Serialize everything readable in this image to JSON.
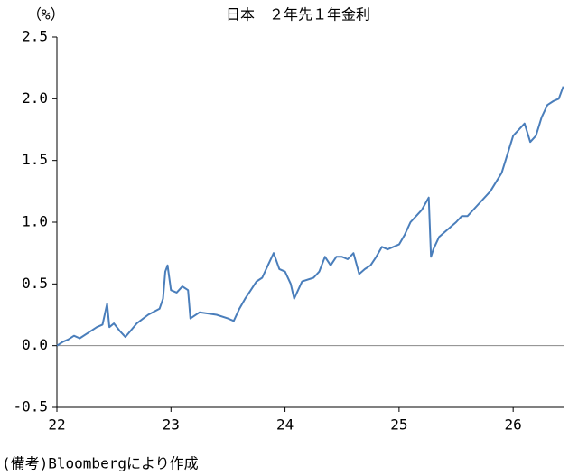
{
  "chart_data": {
    "type": "line",
    "title": "日本　２年先１年金利",
    "y_label": "（%）",
    "source": "(備考)Bloombergにより作成",
    "x": [
      22.0,
      22.05,
      22.1,
      22.15,
      22.2,
      22.3,
      22.35,
      22.4,
      22.44,
      22.46,
      22.5,
      22.55,
      22.6,
      22.7,
      22.8,
      22.9,
      22.93,
      22.95,
      22.97,
      23.0,
      23.05,
      23.1,
      23.15,
      23.17,
      23.25,
      23.4,
      23.5,
      23.55,
      23.6,
      23.65,
      23.7,
      23.75,
      23.8,
      23.85,
      23.9,
      23.95,
      24.0,
      24.05,
      24.08,
      24.15,
      24.25,
      24.3,
      24.35,
      24.4,
      24.45,
      24.5,
      24.55,
      24.6,
      24.65,
      24.7,
      24.75,
      24.8,
      24.85,
      24.9,
      25.0,
      25.05,
      25.1,
      25.15,
      25.2,
      25.26,
      25.28,
      25.3,
      25.35,
      25.4,
      25.5,
      25.55,
      25.6,
      25.7,
      25.8,
      25.9,
      26.0,
      26.1,
      26.15,
      26.2,
      26.25,
      26.3,
      26.35,
      26.4,
      26.44
    ],
    "series": [
      {
        "name": "日本　２年先１年金利",
        "color": "#4a7ebb",
        "values": [
          0.0,
          0.03,
          0.05,
          0.08,
          0.06,
          0.12,
          0.15,
          0.17,
          0.34,
          0.15,
          0.18,
          0.12,
          0.07,
          0.18,
          0.25,
          0.3,
          0.38,
          0.6,
          0.65,
          0.45,
          0.43,
          0.48,
          0.45,
          0.22,
          0.27,
          0.25,
          0.22,
          0.2,
          0.3,
          0.38,
          0.45,
          0.52,
          0.55,
          0.65,
          0.75,
          0.62,
          0.6,
          0.5,
          0.38,
          0.52,
          0.55,
          0.6,
          0.72,
          0.65,
          0.72,
          0.72,
          0.7,
          0.75,
          0.58,
          0.62,
          0.65,
          0.72,
          0.8,
          0.78,
          0.82,
          0.9,
          1.0,
          1.05,
          1.1,
          1.2,
          0.72,
          0.78,
          0.88,
          0.92,
          1.0,
          1.05,
          1.05,
          1.15,
          1.25,
          1.4,
          1.7,
          1.8,
          1.65,
          1.7,
          1.85,
          1.95,
          1.98,
          2.0,
          2.1
        ]
      }
    ],
    "xlim": [
      22,
      26.45
    ],
    "xticks": [
      22,
      23,
      24,
      25,
      26
    ],
    "ylim": [
      -0.5,
      2.5
    ],
    "yticks": [
      2.5,
      {
        "value": 2.0,
        "label": "2.0"
      },
      1.5,
      {
        "value": 1.0,
        "label": "1.0"
      },
      0.5,
      {
        "value": 0.0,
        "label": "0.0"
      },
      -0.5
    ],
    "grid": false
  }
}
